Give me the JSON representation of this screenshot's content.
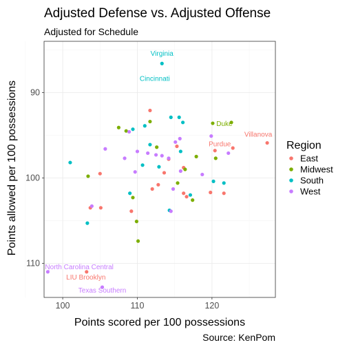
{
  "chart_data": {
    "type": "scatter",
    "title": "Adjusted Defense vs. Adjusted Offense",
    "subtitle": "Adjusted for Schedule",
    "xlabel": "Points scored per 100 possessions",
    "ylabel": "Points allowed per 100 possessions",
    "caption": "Source: KenPom",
    "xlim": [
      97.5,
      128.5
    ],
    "ylim": [
      84,
      114
    ],
    "y_reversed": true,
    "x_ticks": [
      "100",
      "110",
      "120"
    ],
    "y_ticks": [
      "90",
      "100",
      "110"
    ],
    "grid": true,
    "legend": {
      "title": "Region",
      "position": "right",
      "entries": [
        "East",
        "Midwest",
        "South",
        "West"
      ]
    },
    "colors": {
      "East": "#F8766D",
      "Midwest": "#7CAE00",
      "South": "#00BFC4",
      "West": "#C77CFF"
    },
    "series": [
      {
        "name": "East",
        "values": [
          [
            127.4,
            95.9
          ],
          [
            122.8,
            96.5
          ],
          [
            120.4,
            96.8
          ],
          [
            115.3,
            96.3
          ],
          [
            111.7,
            92.1
          ],
          [
            114.2,
            97.8
          ],
          [
            116.2,
            98.8
          ],
          [
            113.6,
            99.4
          ],
          [
            112.8,
            100.8
          ],
          [
            112.0,
            101.3
          ],
          [
            105.0,
            99.5
          ],
          [
            116.2,
            101.8
          ],
          [
            116.6,
            102.2
          ],
          [
            119.8,
            101.7
          ],
          [
            121.6,
            101.8
          ],
          [
            109.2,
            103.9
          ],
          [
            103.7,
            103.5
          ],
          [
            105.1,
            103.5
          ],
          [
            103.2,
            111.0
          ]
        ]
      },
      {
        "name": "Midwest",
        "values": [
          [
            122.6,
            93.5
          ],
          [
            120.1,
            93.6
          ],
          [
            117.9,
            97.5
          ],
          [
            120.5,
            97.7
          ],
          [
            107.5,
            94.1
          ],
          [
            108.5,
            94.5
          ],
          [
            111.7,
            93.4
          ],
          [
            103.4,
            99.8
          ],
          [
            115.4,
            100.6
          ],
          [
            116.4,
            99.0
          ],
          [
            112.6,
            96.4
          ],
          [
            117.4,
            102.6
          ],
          [
            109.4,
            102.3
          ],
          [
            109.9,
            105.1
          ],
          [
            110.1,
            107.4
          ]
        ]
      },
      {
        "name": "South",
        "values": [
          [
            113.3,
            86.6
          ],
          [
            116.1,
            93.5
          ],
          [
            115.8,
            96.9
          ],
          [
            121.6,
            100.6
          ],
          [
            120.2,
            100.4
          ],
          [
            109.4,
            94.3
          ],
          [
            111.0,
            93.9
          ],
          [
            114.5,
            92.9
          ],
          [
            115.6,
            92.9
          ],
          [
            111.7,
            96.1
          ],
          [
            110.7,
            98.5
          ],
          [
            112.9,
            98.7
          ],
          [
            101.0,
            98.2
          ],
          [
            109.0,
            101.8
          ],
          [
            114.3,
            103.8
          ],
          [
            117.1,
            102.0
          ],
          [
            103.3,
            105.3
          ]
        ]
      },
      {
        "name": "West",
        "values": [
          [
            119.9,
            95.1
          ],
          [
            115.7,
            95.4
          ],
          [
            115.1,
            95.8
          ],
          [
            114.2,
            97.7
          ],
          [
            111.4,
            97.1
          ],
          [
            113.3,
            97.4
          ],
          [
            108.9,
            94.6
          ],
          [
            108.3,
            97.7
          ],
          [
            110.0,
            96.9
          ],
          [
            109.7,
            99.3
          ],
          [
            105.7,
            96.6
          ],
          [
            112.5,
            97.3
          ],
          [
            118.7,
            99.6
          ],
          [
            122.2,
            97.1
          ],
          [
            114.8,
            101.3
          ],
          [
            115.8,
            99.2
          ],
          [
            103.9,
            103.3
          ],
          [
            114.5,
            103.9
          ],
          [
            98.0,
            111.0
          ],
          [
            105.3,
            112.8
          ]
        ]
      }
    ],
    "annotations": [
      {
        "text": "Virginia",
        "region": "South",
        "x": 113.3,
        "y": 86.6
      },
      {
        "text": "Cincinnati",
        "region": "South",
        "x": 112.8,
        "y": 88.0
      },
      {
        "text": "Duke",
        "region": "Midwest",
        "x": 120.1,
        "y": 93.6
      },
      {
        "text": "Villanova",
        "region": "East",
        "x": 127.4,
        "y": 95.9
      },
      {
        "text": "Purdue",
        "region": "East",
        "x": 120.4,
        "y": 96.8
      },
      {
        "text": "North Carolina Central",
        "region": "West",
        "x": 98.0,
        "y": 111.0
      },
      {
        "text": "LIU Brooklyn",
        "region": "East",
        "x": 103.2,
        "y": 111.0
      },
      {
        "text": "Texas Southern",
        "region": "West",
        "x": 105.3,
        "y": 112.8
      }
    ]
  }
}
